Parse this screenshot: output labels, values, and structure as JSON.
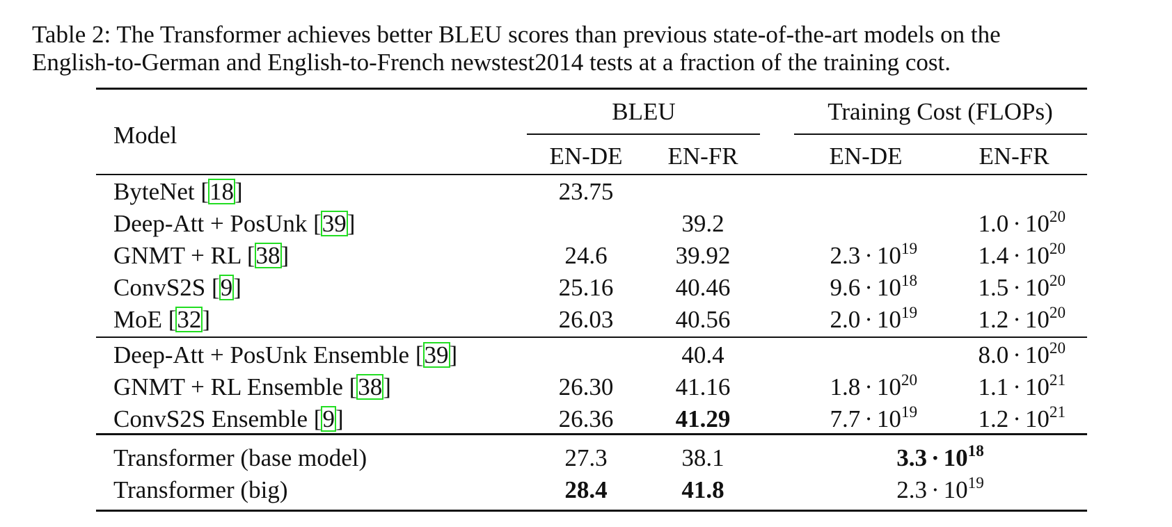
{
  "caption": "Table 2: The Transformer achieves better BLEU scores than previous state-of-the-art models on the English-to-German and English-to-French newstest2014 tests at a fraction of the training cost.",
  "caption_lines": [
    "Table 2: The Transformer achieves better BLEU scores than previous state-of-the-art models on the",
    "English-to-German and English-to-French newstest2014 tests at a fraction of the training cost."
  ],
  "columns": {
    "model": "Model",
    "bleu_group": "BLEU",
    "cost_group": "Training Cost (FLOPs)",
    "en_de": "EN-DE",
    "en_fr": "EN-FR"
  },
  "rows": [
    {
      "model": "ByteNet",
      "cite": "18",
      "bleu_en_de": "23.75",
      "bleu_en_fr": "",
      "cost_en_de": "",
      "cost_en_fr": ""
    },
    {
      "model": "Deep-Att + PosUnk",
      "cite": "39",
      "bleu_en_de": "",
      "bleu_en_fr": "39.2",
      "cost_en_de": "",
      "cost_en_fr": "1.0 · 10^20"
    },
    {
      "model": "GNMT + RL",
      "cite": "38",
      "bleu_en_de": "24.6",
      "bleu_en_fr": "39.92",
      "cost_en_de": "2.3 · 10^19",
      "cost_en_fr": "1.4 · 10^20"
    },
    {
      "model": "ConvS2S",
      "cite": "9",
      "bleu_en_de": "25.16",
      "bleu_en_fr": "40.46",
      "cost_en_de": "9.6 · 10^18",
      "cost_en_fr": "1.5 · 10^20"
    },
    {
      "model": "MoE",
      "cite": "32",
      "bleu_en_de": "26.03",
      "bleu_en_fr": "40.56",
      "cost_en_de": "2.0 · 10^19",
      "cost_en_fr": "1.2 · 10^20"
    },
    {
      "model": "Deep-Att + PosUnk Ensemble",
      "cite": "39",
      "bleu_en_de": "",
      "bleu_en_fr": "40.4",
      "cost_en_de": "",
      "cost_en_fr": "8.0 · 10^20"
    },
    {
      "model": "GNMT + RL Ensemble",
      "cite": "38",
      "bleu_en_de": "26.30",
      "bleu_en_fr": "41.16",
      "cost_en_de": "1.8 · 10^20",
      "cost_en_fr": "1.1 · 10^21"
    },
    {
      "model": "ConvS2S Ensemble",
      "cite": "9",
      "bleu_en_de": "26.36",
      "bleu_en_fr": "41.29",
      "bleu_en_fr_bold": true,
      "cost_en_de": "7.7 · 10^19",
      "cost_en_fr": "1.2 · 10^21"
    },
    {
      "model": "Transformer (base model)",
      "cite": "",
      "bleu_en_de": "27.3",
      "bleu_en_fr": "38.1",
      "cost_both": "3.3 · 10^18",
      "cost_bold": true
    },
    {
      "model": "Transformer (big)",
      "cite": "",
      "bleu_en_de": "28.4",
      "bleu_en_fr": "41.8",
      "bleu_en_de_bold": true,
      "bleu_en_fr_bold": true,
      "cost_both": "2.3 · 10^19"
    }
  ],
  "colors": {
    "citation_box": "#22dd22",
    "text": "#111111"
  }
}
